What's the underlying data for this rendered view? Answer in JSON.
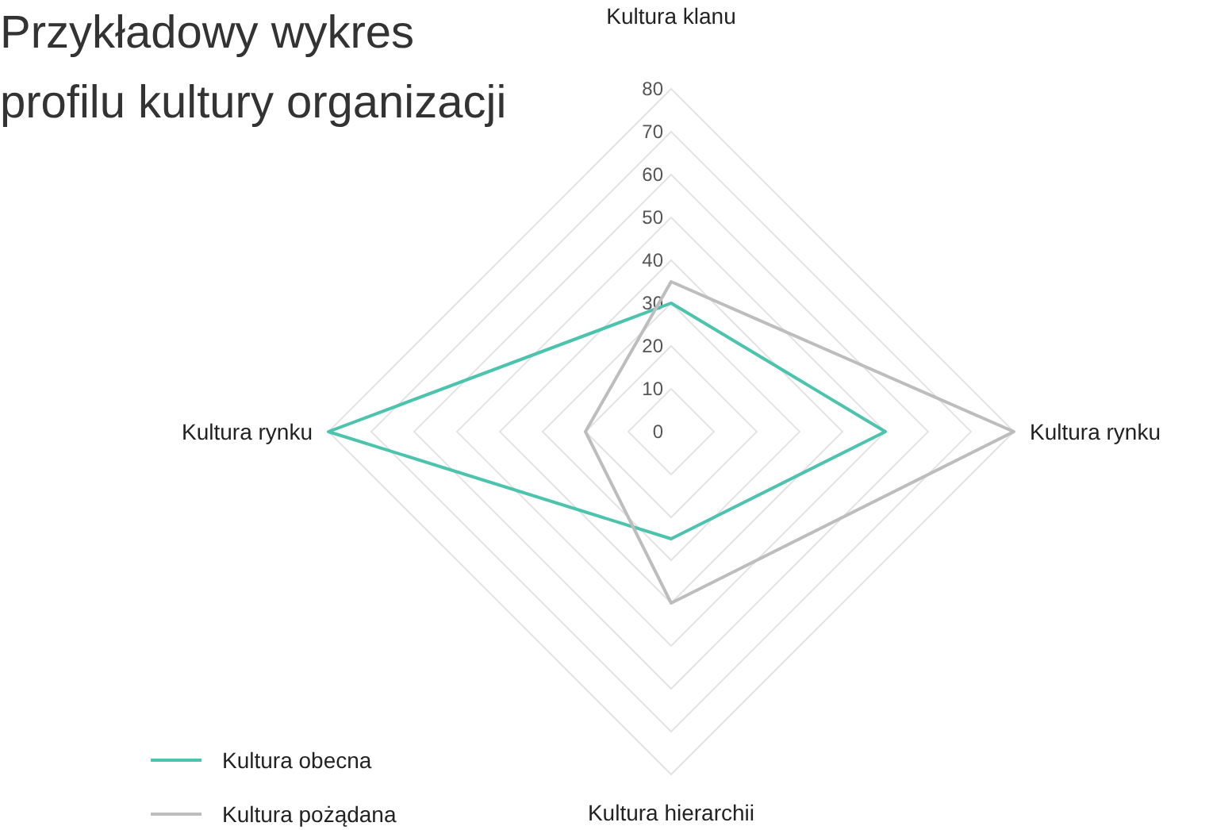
{
  "chart_data": {
    "type": "radar",
    "title": "Przykładowy wykres profilu kultury organizacji",
    "categories": [
      "Kultura klanu",
      "Kultura rynku",
      "Kultura hierarchii",
      "Kultura rynku"
    ],
    "series": [
      {
        "name": "Kultura obecna",
        "color": "#4cc3ac",
        "values": [
          30,
          50,
          25,
          80
        ]
      },
      {
        "name": "Kultura pożądana",
        "color": "#bdbdbd",
        "values": [
          35,
          80,
          40,
          20
        ]
      }
    ],
    "ylim": [
      0,
      80
    ],
    "yticks": [
      0,
      10,
      20,
      30,
      40,
      50,
      60,
      70,
      80
    ],
    "grid": true,
    "legend": "bottom left",
    "marker": "none",
    "line_style": "solid"
  }
}
